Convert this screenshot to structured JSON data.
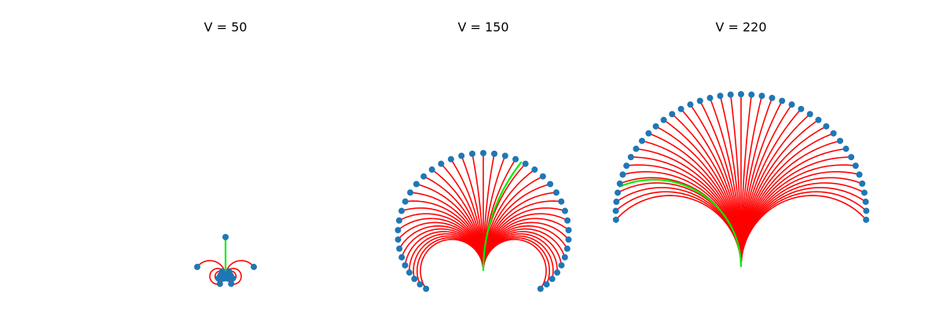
{
  "chart_data": [
    {
      "type": "line",
      "title": "V = 50",
      "origin": [
        0,
        0
      ],
      "line_colors": {
        "default": "#ff0000",
        "highlight": "#00ee00"
      },
      "endpoint_color": "#1f77b4",
      "curvature_range": [
        -1.0,
        1.0
      ],
      "n_curves": 41,
      "arc_length": 50,
      "highlight_curvature": 0.0
    },
    {
      "type": "line",
      "title": "V = 150",
      "origin": [
        0,
        0
      ],
      "line_colors": {
        "default": "#ff0000",
        "highlight": "#00ee00"
      },
      "endpoint_color": "#1f77b4",
      "curvature_range": [
        -0.025,
        0.025
      ],
      "n_curves": 41,
      "arc_length": 150,
      "highlight_curvature": 0.0045
    },
    {
      "type": "line",
      "title": "V = 220",
      "origin": [
        0,
        0
      ],
      "line_colors": {
        "default": "#ff0000",
        "highlight": "#00ee00"
      },
      "endpoint_color": "#1f77b4",
      "curvature_range": [
        -0.011,
        0.011
      ],
      "n_curves": 41,
      "arc_length": 220,
      "highlight_curvature": -0.009
    }
  ]
}
